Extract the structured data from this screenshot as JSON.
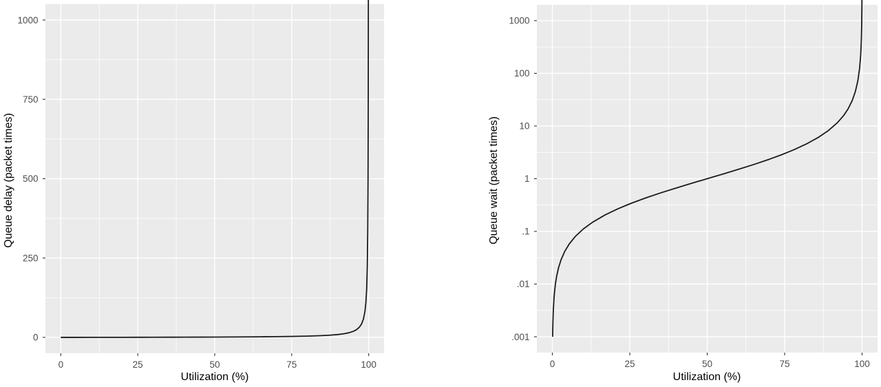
{
  "figure": {
    "description_visible_text_only": true
  },
  "colors": {
    "figure_background": "#FFFFFF",
    "panel_background": "#EBEBEB",
    "gridline": "#FFFFFF",
    "curve": "#1A1A1A",
    "tick_text": "#4D4D4D",
    "axis_title_text": "#000000"
  },
  "chart_data": [
    {
      "id": "queue-delay-linear",
      "type": "line",
      "title": "",
      "xlabel": "Utilization (%)",
      "ylabel": "Queue delay (packet times)",
      "grid": true,
      "legend": "none",
      "x": {
        "scale": "linear",
        "lim": [
          0,
          100
        ],
        "domain": [
          -5,
          105
        ],
        "ticks": [
          0,
          25,
          50,
          75,
          100
        ],
        "tick_labels": [
          "0",
          "25",
          "50",
          "75",
          "100"
        ],
        "minor": [
          12.5,
          37.5,
          62.5,
          87.5
        ]
      },
      "y": {
        "scale": "linear",
        "lim": [
          0,
          1000
        ],
        "domain": [
          -50,
          1050
        ],
        "ticks": [
          0,
          250,
          500,
          750,
          1000
        ],
        "tick_labels": [
          "0",
          "250",
          "500",
          "750",
          "1000"
        ],
        "minor": [
          125,
          375,
          625,
          875
        ]
      },
      "series": [
        {
          "name": "queue-delay-curve",
          "points": [
            [
              0,
              0
            ],
            [
              5,
              0.053
            ],
            [
              10,
              0.111
            ],
            [
              15,
              0.176
            ],
            [
              20,
              0.25
            ],
            [
              25,
              0.333
            ],
            [
              30,
              0.429
            ],
            [
              35,
              0.538
            ],
            [
              40,
              0.667
            ],
            [
              45,
              0.818
            ],
            [
              50,
              1
            ],
            [
              55,
              1.222
            ],
            [
              60,
              1.5
            ],
            [
              65,
              1.857
            ],
            [
              70,
              2.333
            ],
            [
              75,
              3
            ],
            [
              80,
              4
            ],
            [
              84,
              5.25
            ],
            [
              87,
              6.692
            ],
            [
              90,
              9
            ],
            [
              92,
              11.5
            ],
            [
              93.5,
              14.385
            ],
            [
              95,
              19
            ],
            [
              96,
              24
            ],
            [
              97,
              32.333
            ],
            [
              97.7,
              42.478
            ],
            [
              98.3,
              57.824
            ],
            [
              98.8,
              82.333
            ],
            [
              99.1,
              110.111
            ],
            [
              99.35,
              152.846
            ],
            [
              99.55,
              221.222
            ],
            [
              99.7,
              332.333
            ],
            [
              99.8,
              499
            ],
            [
              99.87,
              768.231
            ],
            [
              99.92,
              1249
            ]
          ]
        }
      ]
    },
    {
      "id": "queue-wait-log",
      "type": "line",
      "title": "",
      "xlabel": "Utilization (%)",
      "ylabel": "Queue wait (packet times)",
      "grid": true,
      "legend": "none",
      "x": {
        "scale": "linear",
        "lim": [
          0,
          100
        ],
        "domain": [
          -5,
          105
        ],
        "ticks": [
          0,
          25,
          50,
          75,
          100
        ],
        "tick_labels": [
          "0",
          "25",
          "50",
          "75",
          "100"
        ],
        "minor": [
          12.5,
          37.5,
          62.5,
          87.5
        ]
      },
      "y": {
        "scale": "log10",
        "lim": [
          0.001,
          1000
        ],
        "domain_log10": [
          -3.3,
          3.3
        ],
        "ticks": [
          1000,
          100,
          10,
          1,
          0.1,
          0.01,
          0.001
        ],
        "tick_labels": [
          "1000",
          "100",
          "10",
          "1",
          ".1",
          ".01",
          ".001"
        ],
        "minor": [
          316.23,
          31.623,
          3.1623,
          0.31623,
          0.031623,
          0.0031623
        ]
      },
      "series": [
        {
          "name": "queue-wait-curve",
          "points": [
            [
              0.1,
              0.001
            ],
            [
              0.13,
              0.0013
            ],
            [
              0.18,
              0.0018
            ],
            [
              0.25,
              0.0025
            ],
            [
              0.35,
              0.0035
            ],
            [
              0.5,
              0.005
            ],
            [
              0.7,
              0.007
            ],
            [
              1,
              0.0101
            ],
            [
              1.4,
              0.0142
            ],
            [
              2,
              0.0204
            ],
            [
              2.8,
              0.0288
            ],
            [
              4,
              0.0417
            ],
            [
              5.5,
              0.0582
            ],
            [
              7.5,
              0.0811
            ],
            [
              10,
              0.1111
            ],
            [
              13,
              0.1494
            ],
            [
              17,
              0.2048
            ],
            [
              21,
              0.2658
            ],
            [
              25,
              0.3333
            ],
            [
              30,
              0.4286
            ],
            [
              35,
              0.5385
            ],
            [
              40,
              0.6667
            ],
            [
              45,
              0.8182
            ],
            [
              50,
              1
            ],
            [
              55,
              1.2222
            ],
            [
              60,
              1.5
            ],
            [
              65,
              1.8571
            ],
            [
              70,
              2.3333
            ],
            [
              74,
              2.8462
            ],
            [
              78,
              3.5455
            ],
            [
              82,
              4.5556
            ],
            [
              86,
              6.1429
            ],
            [
              89,
              8.0909
            ],
            [
              92,
              11.5
            ],
            [
              94,
              15.6667
            ],
            [
              95.5,
              21.2222
            ],
            [
              96.8,
              30.25
            ],
            [
              97.8,
              44.4545
            ],
            [
              98.6,
              70.4286
            ],
            [
              99.2,
              124
            ],
            [
              99.55,
              221.2222
            ],
            [
              99.75,
              399
            ],
            [
              99.87,
              768.2308
            ],
            [
              99.94,
              1665.6667
            ],
            [
              99.97,
              3332.3333
            ]
          ]
        }
      ]
    }
  ]
}
